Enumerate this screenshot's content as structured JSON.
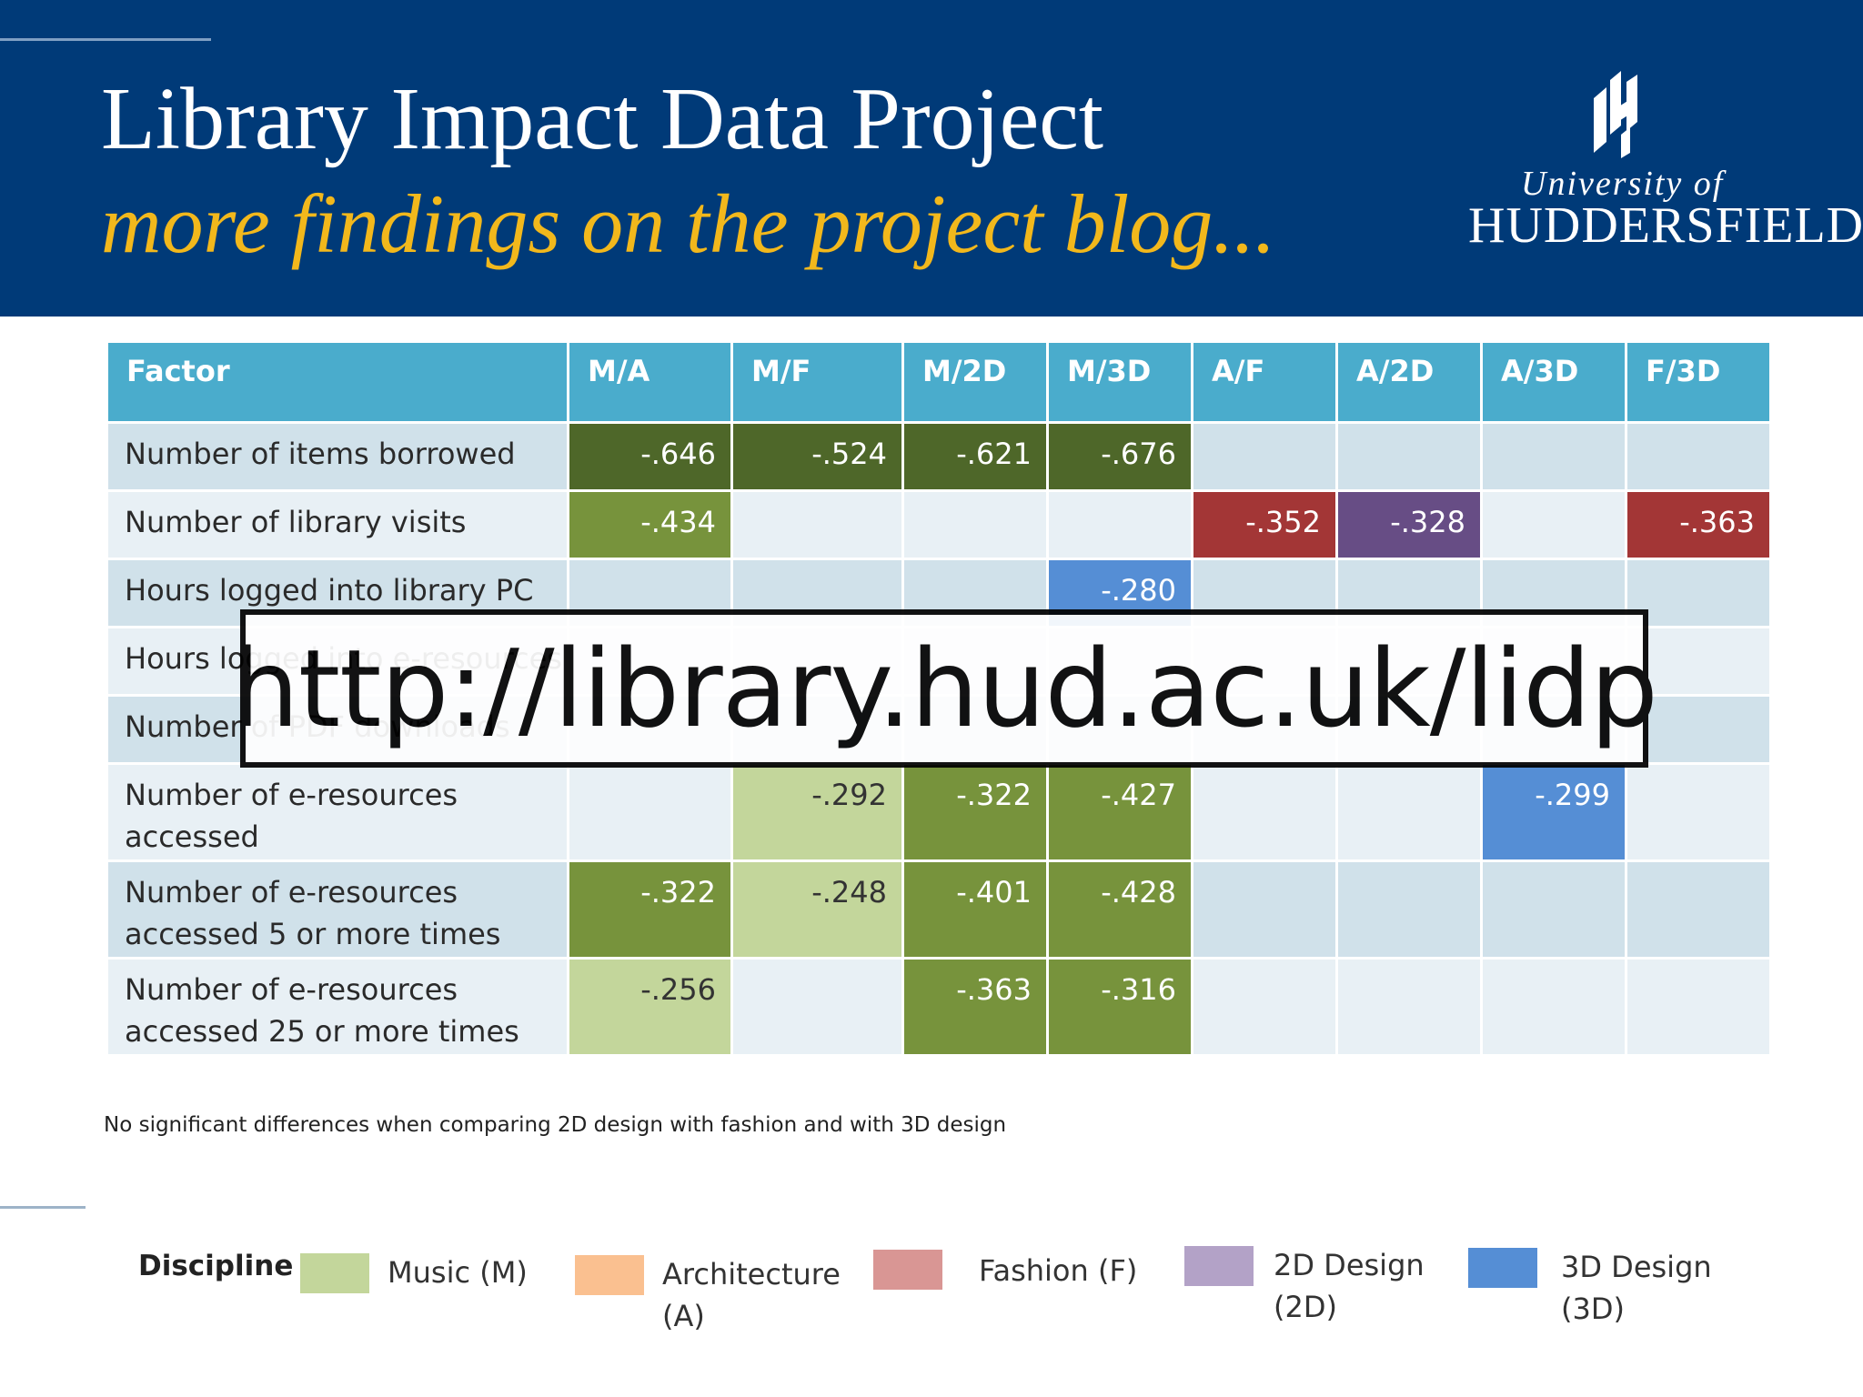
{
  "header": {
    "title": "Library Impact Data Project",
    "subtitle": "more findings on the project blog...",
    "logo_line1": "University of",
    "logo_line2": "HUDDERSFIELD"
  },
  "table": {
    "columns": [
      "Factor",
      "M/A",
      "M/F",
      "M/2D",
      "M/3D",
      "A/F",
      "A/2D",
      "A/3D",
      "F/3D"
    ],
    "rows": [
      {
        "factor": "Number of items borrowed",
        "cells": [
          {
            "v": "-.646",
            "c": "dark"
          },
          {
            "v": "-.524",
            "c": "dark"
          },
          {
            "v": "-.621",
            "c": "dark"
          },
          {
            "v": "-.676",
            "c": "dark"
          },
          {
            "v": "",
            "c": ""
          },
          {
            "v": "",
            "c": ""
          },
          {
            "v": "",
            "c": ""
          },
          {
            "v": "",
            "c": ""
          }
        ]
      },
      {
        "factor": "Number of library visits",
        "cells": [
          {
            "v": "-.434",
            "c": "mid"
          },
          {
            "v": "",
            "c": ""
          },
          {
            "v": "",
            "c": ""
          },
          {
            "v": "",
            "c": ""
          },
          {
            "v": "-.352",
            "c": "red"
          },
          {
            "v": "-.328",
            "c": "purple"
          },
          {
            "v": "",
            "c": ""
          },
          {
            "v": "-.363",
            "c": "red"
          }
        ]
      },
      {
        "factor": "Hours logged into library PC",
        "cells": [
          {
            "v": "",
            "c": ""
          },
          {
            "v": "",
            "c": ""
          },
          {
            "v": "",
            "c": ""
          },
          {
            "v": "-.280",
            "c": "blue"
          },
          {
            "v": "",
            "c": ""
          },
          {
            "v": "",
            "c": ""
          },
          {
            "v": "",
            "c": ""
          },
          {
            "v": "",
            "c": ""
          }
        ]
      },
      {
        "factor": "Hours logged into e-resources",
        "cells": [
          {
            "v": "",
            "c": ""
          },
          {
            "v": "",
            "c": ""
          },
          {
            "v": "",
            "c": ""
          },
          {
            "v": "",
            "c": ""
          },
          {
            "v": "",
            "c": ""
          },
          {
            "v": "",
            "c": ""
          },
          {
            "v": "",
            "c": ""
          },
          {
            "v": "",
            "c": ""
          }
        ]
      },
      {
        "factor": "Number of PDF downloads",
        "cells": [
          {
            "v": "",
            "c": ""
          },
          {
            "v": "",
            "c": ""
          },
          {
            "v": "",
            "c": ""
          },
          {
            "v": "",
            "c": ""
          },
          {
            "v": "",
            "c": ""
          },
          {
            "v": "",
            "c": ""
          },
          {
            "v": "",
            "c": ""
          },
          {
            "v": "",
            "c": ""
          }
        ]
      },
      {
        "factor": "Number of e-resources accessed",
        "cells": [
          {
            "v": "",
            "c": ""
          },
          {
            "v": "-.292",
            "c": "light"
          },
          {
            "v": "-.322",
            "c": "mid"
          },
          {
            "v": "-.427",
            "c": "mid"
          },
          {
            "v": "",
            "c": ""
          },
          {
            "v": "",
            "c": ""
          },
          {
            "v": "-.299",
            "c": "blue"
          },
          {
            "v": "",
            "c": ""
          }
        ]
      },
      {
        "factor": "Number of e-resources accessed 5 or more times",
        "cells": [
          {
            "v": "-.322",
            "c": "mid"
          },
          {
            "v": "-.248",
            "c": "light"
          },
          {
            "v": "-.401",
            "c": "mid"
          },
          {
            "v": "-.428",
            "c": "mid"
          },
          {
            "v": "",
            "c": ""
          },
          {
            "v": "",
            "c": ""
          },
          {
            "v": "",
            "c": ""
          },
          {
            "v": "",
            "c": ""
          }
        ]
      },
      {
        "factor": "Number of e-resources accessed 25 or more times",
        "cells": [
          {
            "v": "-.256",
            "c": "light"
          },
          {
            "v": "",
            "c": ""
          },
          {
            "v": "-.363",
            "c": "mid"
          },
          {
            "v": "-.316",
            "c": "mid"
          },
          {
            "v": "",
            "c": ""
          },
          {
            "v": "",
            "c": ""
          },
          {
            "v": "",
            "c": ""
          },
          {
            "v": "",
            "c": ""
          }
        ]
      }
    ]
  },
  "url_overlay": "http://library.hud.ac.uk/lidp",
  "note": "No significant differences when comparing 2D design with fashion and with 3D design",
  "legend": {
    "title": "Discipline",
    "items": [
      {
        "label": "Music (M)",
        "color": "#c3d69b"
      },
      {
        "label": "Architecture (A)",
        "color": "#fac090"
      },
      {
        "label": "Fashion (F)",
        "color": "#d99694"
      },
      {
        "label": "2D Design (2D)",
        "color": "#b3a2c7"
      },
      {
        "label": "3D Design (3D)",
        "color": "#558ed5"
      }
    ]
  },
  "colors": {
    "header_bg": "#003a78",
    "subtitle": "#f2b81c",
    "table_header": "#4aaccc",
    "dark_green": "#4e6729",
    "mid_green": "#77933c",
    "light_green": "#c3d69b",
    "red": "#a33636",
    "purple": "#674d85",
    "blue": "#558ed5"
  }
}
